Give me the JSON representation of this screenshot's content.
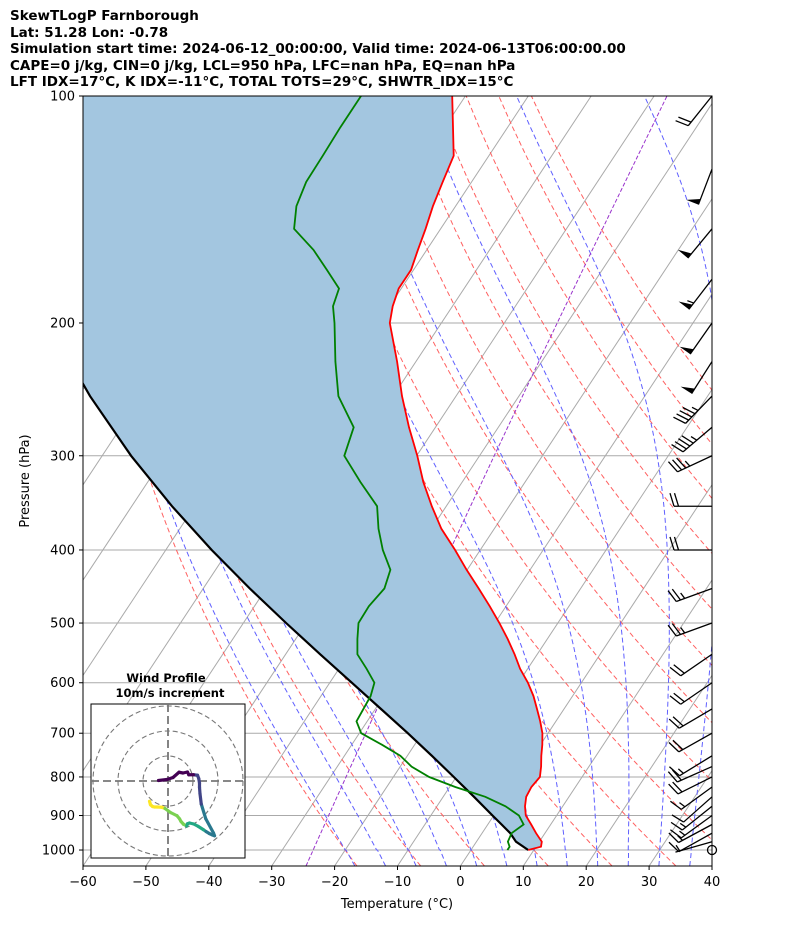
{
  "header": {
    "lines": [
      "SkewTLogP Farnborough",
      "Lat: 51.28   Lon: -0.78",
      "Simulation start time: 2024-06-12_00:00:00, Valid time: 2024-06-13T06:00:00.00",
      "CAPE=0 j/kg, CIN=0 j/kg, LCL=950 hPa, LFC=nan hPa, EQ=nan hPa",
      "LFT IDX=17°C, K IDX=-11°C, TOTAL TOTS=29°C, SHWTR_IDX=15°C"
    ]
  },
  "chart_data": {
    "type": "skewt-logp",
    "xlabel": "Temperature (°C)",
    "ylabel": "Pressure (hPa)",
    "xlim": [
      -60,
      40
    ],
    "ylim": [
      1050,
      100
    ],
    "x_ticks": [
      "−60",
      "−50",
      "−40",
      "−30",
      "−20",
      "−10",
      "0",
      "10",
      "20",
      "30",
      "40"
    ],
    "x_tick_values": [
      -60,
      -50,
      -40,
      -30,
      -20,
      -10,
      0,
      10,
      20,
      30,
      40
    ],
    "y_ticks": [
      "1000",
      "900",
      "800",
      "700",
      "600",
      "500",
      "400",
      "300",
      "200",
      "100"
    ],
    "y_tick_values": [
      1000,
      900,
      800,
      700,
      600,
      500,
      400,
      300,
      200,
      100
    ],
    "y_scale": "log",
    "grid": true,
    "colors": {
      "temperature": "#ff0000",
      "dewpoint": "#008000",
      "parcel": "#000000",
      "shade": "#a3c6e0",
      "dry_adiabat": "#ff6060",
      "moist_adiabat": "#6060ff",
      "mixing_ratio": "#9933cc",
      "isotherm": "#aaaaaa"
    },
    "series": [
      {
        "key": "temperature",
        "pressure": [
          1000,
          990,
          975,
          950,
          925,
          900,
          875,
          850,
          825,
          800,
          775,
          750,
          725,
          700,
          675,
          650,
          625,
          600,
          575,
          550,
          525,
          500,
          475,
          450,
          425,
          400,
          375,
          350,
          325,
          300,
          275,
          250,
          225,
          200,
          190,
          180,
          170,
          160,
          150,
          140,
          130,
          120,
          110,
          100
        ],
        "values": [
          9.1,
          10.8,
          10.4,
          8.6,
          6.9,
          5.1,
          4.0,
          3.2,
          3.0,
          3.3,
          2.4,
          1.3,
          0.3,
          -0.9,
          -2.5,
          -4.3,
          -6.2,
          -8.5,
          -11.2,
          -13.6,
          -16.3,
          -19.3,
          -22.6,
          -26.2,
          -30.1,
          -34.0,
          -38.4,
          -42.3,
          -46.2,
          -49.9,
          -54.2,
          -58.6,
          -63.0,
          -68.2,
          -69.5,
          -70.4,
          -70.4,
          -71.4,
          -72.4,
          -73.6,
          -74.6,
          -75.6,
          -78.7,
          -82.1
        ]
      },
      {
        "key": "dewpoint",
        "pressure": [
          1000,
          990,
          975,
          950,
          925,
          900,
          875,
          850,
          825,
          800,
          775,
          750,
          725,
          700,
          675,
          650,
          625,
          600,
          575,
          550,
          525,
          500,
          475,
          450,
          425,
          400,
          375,
          350,
          325,
          300,
          275,
          250,
          225,
          200,
          190,
          180,
          170,
          160,
          150,
          140,
          130,
          120,
          110,
          100
        ],
        "values": [
          5.8,
          5.8,
          5.0,
          4.7,
          5.7,
          4.0,
          0.9,
          -3.3,
          -9.1,
          -14.3,
          -18.2,
          -21.1,
          -25.2,
          -29.7,
          -31.7,
          -31.9,
          -32.1,
          -32.9,
          -35.6,
          -38.6,
          -40.2,
          -41.7,
          -41.8,
          -41.2,
          -42.2,
          -45.5,
          -48.4,
          -51.0,
          -56.2,
          -61.5,
          -63.0,
          -68.7,
          -72.8,
          -77.0,
          -79.0,
          -79.9,
          -83.8,
          -88.0,
          -93.3,
          -95.3,
          -96.3,
          -96.4,
          -96.6,
          -96.6
        ]
      },
      {
        "key": "parcel",
        "pressure": [
          1000,
          975,
          950,
          925,
          900,
          850,
          800,
          750,
          700,
          650,
          600,
          550,
          500,
          450,
          400,
          350,
          300,
          250,
          200,
          150,
          100
        ],
        "values": [
          9.1,
          6.3,
          4.5,
          2.2,
          -0.2,
          -5.1,
          -10.4,
          -16.1,
          -22.3,
          -29.1,
          -36.5,
          -44.5,
          -53.2,
          -62.6,
          -72.7,
          -83.6,
          -95.4,
          -108.2,
          -122.5,
          -139.4,
          -161.8
        ]
      }
    ],
    "wind_barbs": {
      "pressure": [
        1000,
        975,
        950,
        925,
        900,
        875,
        850,
        825,
        800,
        775,
        750,
        700,
        650,
        600,
        550,
        500,
        450,
        400,
        350,
        300,
        275,
        250,
        225,
        200,
        175,
        150,
        125,
        100
      ],
      "u_kt": [
        0,
        7,
        9,
        13,
        11,
        10,
        9,
        11,
        16,
        18,
        13,
        16,
        17,
        16,
        16,
        22,
        22,
        22,
        20,
        30,
        33,
        30,
        28,
        28,
        33,
        33,
        18,
        12
      ],
      "v_kt": [
        0,
        2,
        5,
        7,
        8,
        8,
        8,
        8,
        8,
        8,
        8,
        9,
        10,
        11,
        11,
        8,
        8,
        0,
        0,
        14,
        28,
        31,
        44,
        40,
        43,
        40,
        47,
        15
      ]
    },
    "inset": {
      "title": "Wind Profile",
      "subtitle": "10m/s increment",
      "rings_mps": [
        10,
        20,
        30
      ],
      "hodograph_u": [
        -7.4,
        -7.0,
        -6.2,
        -5.4,
        -4.4,
        -2.5,
        -1.2,
        1.0,
        3.6,
        4.6,
        5.2,
        6.2,
        7.5,
        7.8,
        8.6,
        10.3,
        12.0,
        14.2,
        15.2,
        16.5,
        17.8,
        18.6,
        18.2,
        15.1,
        13.3,
        12.8,
        12.6,
        12.6,
        12.3,
        11.8,
        10.2,
        8.3,
        7.8,
        6.0,
        4.4,
        2.0,
        -0.4,
        -3.8
      ],
      "hodograph_v": [
        -8.1,
        -9.5,
        -10.2,
        -10.4,
        -10.4,
        -10.5,
        -11.0,
        -12.6,
        -13.9,
        -15.1,
        -16.2,
        -17.3,
        -18.0,
        -17.1,
        -16.8,
        -17.2,
        -18.1,
        -19.5,
        -20.2,
        -21.0,
        -21.6,
        -21.9,
        -20.8,
        -15.1,
        -9.2,
        -5.1,
        -2.5,
        -0.8,
        1.0,
        2.3,
        2.5,
        2.5,
        3.6,
        3.2,
        3.5,
        1.4,
        0.6,
        0.2
      ],
      "colormap": [
        "#fde725",
        "#7ad151",
        "#22a884",
        "#2a788e",
        "#414487",
        "#440154"
      ]
    },
    "background_lines": {
      "dry_adiabat_thetas_c": [
        -20,
        -10,
        0,
        10,
        20,
        30,
        40,
        50,
        60,
        70,
        80,
        90,
        100,
        110,
        120
      ],
      "moist_adiabat_t0_c": [
        -20,
        -15,
        -10,
        -5,
        0,
        5,
        10,
        15,
        20,
        25,
        30,
        35
      ],
      "mixing_ratio_gkg": [
        0.5
      ]
    }
  }
}
